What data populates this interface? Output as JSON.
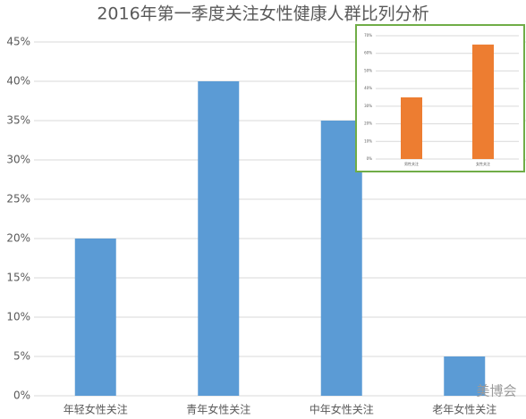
{
  "chart_data": [
    {
      "type": "bar",
      "title": "2016年第一季度关注女性健康人群比列分析",
      "categories": [
        "年轻女性关注",
        "青年女性关注",
        "中年女性关注",
        "老年女性关注"
      ],
      "values": [
        20,
        40,
        35,
        5
      ],
      "color": "#5b9bd5",
      "ylim": [
        0,
        45
      ],
      "yticks": [
        {
          "value": 0,
          "label": "0%"
        },
        {
          "value": 5,
          "label": "5%"
        },
        {
          "value": 10,
          "label": "10%"
        },
        {
          "value": 15,
          "label": "15%"
        },
        {
          "value": 20,
          "label": "20%"
        },
        {
          "value": 25,
          "label": "25%"
        },
        {
          "value": 30,
          "label": "30%"
        },
        {
          "value": 35,
          "label": "35%"
        },
        {
          "value": 40,
          "label": "40%"
        },
        {
          "value": 45,
          "label": "45%"
        }
      ],
      "grid": true
    },
    {
      "type": "bar",
      "categories": [
        "男性关注",
        "女性关注"
      ],
      "values": [
        35,
        65
      ],
      "color": "#ed7d31",
      "ylim": [
        0,
        70
      ],
      "yticks": [
        {
          "value": 0,
          "label": "0%"
        },
        {
          "value": 10,
          "label": "10%"
        },
        {
          "value": 20,
          "label": "20%"
        },
        {
          "value": 30,
          "label": "30%"
        },
        {
          "value": 40,
          "label": "40%"
        },
        {
          "value": 50,
          "label": "50%"
        },
        {
          "value": 60,
          "label": "60%"
        },
        {
          "value": 70,
          "label": "70%"
        }
      ],
      "grid": true
    }
  ],
  "watermark": "美博会"
}
